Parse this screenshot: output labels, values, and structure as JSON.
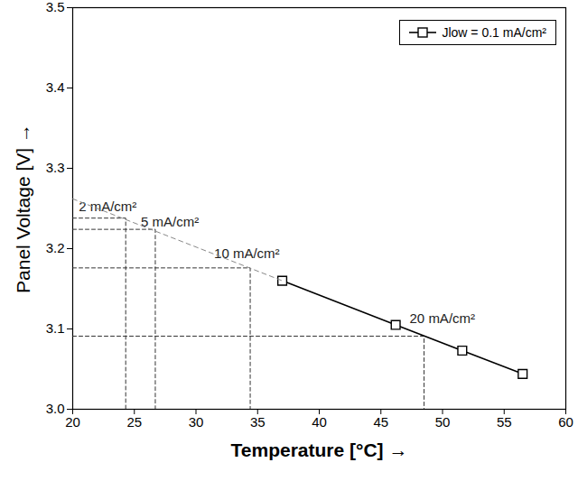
{
  "chart_data": {
    "type": "line",
    "x_label": "Temperature [°C]",
    "y_label": "Panel Voltage [V]",
    "xlim": [
      20,
      60
    ],
    "xticks": [
      20,
      25,
      30,
      35,
      40,
      45,
      50,
      55,
      60
    ],
    "ylim": [
      3.0,
      3.5
    ],
    "yticks": [
      {
        "value": 3.0,
        "label": "3.0"
      },
      3.1,
      3.2,
      3.3,
      3.4,
      3.5
    ],
    "grid": false,
    "legend": "upper right",
    "series": [
      {
        "name": "Jlow = 0.1 mA/cm²",
        "color": "#000000",
        "marker": "square",
        "line_style": "solid",
        "x": [
          37.0,
          46.2,
          51.6,
          56.5
        ],
        "values": [
          3.16,
          3.105,
          3.073,
          3.044
        ]
      },
      {
        "color": "#888888",
        "marker": "none",
        "line_style": "dashed",
        "x": [
          20.0,
          37.0
        ],
        "values": [
          3.262,
          3.16
        ]
      }
    ],
    "annotations": [
      {
        "label": "2 mA/cm²",
        "x": 24.3,
        "y": 3.238
      },
      {
        "label": "5 mA/cm²",
        "x": 26.7,
        "y": 3.224
      },
      {
        "label": "10 mA/cm²",
        "x": 34.4,
        "y": 3.176
      },
      {
        "label": "20 mA/cm²",
        "x": 48.5,
        "y": 3.091
      }
    ]
  }
}
